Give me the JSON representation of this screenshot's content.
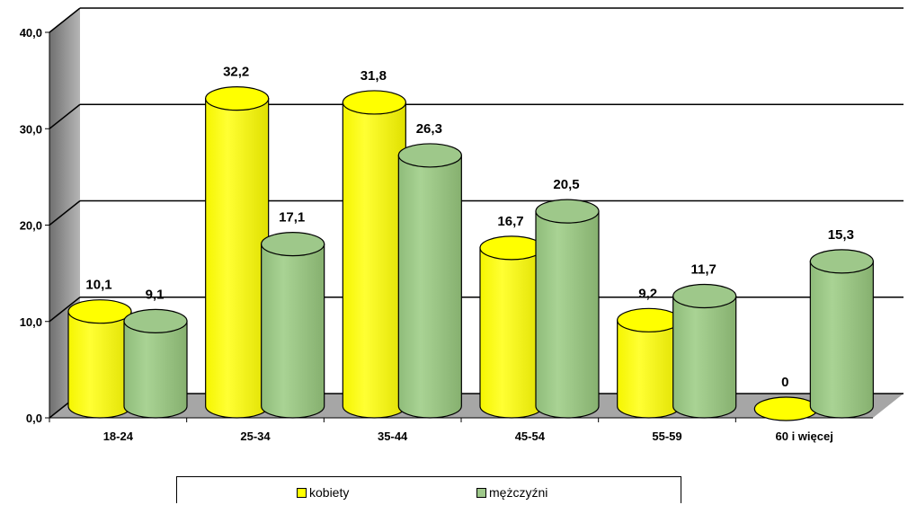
{
  "chart_data": {
    "type": "bar",
    "categories": [
      "18-24",
      "25-34",
      "35-44",
      "45-54",
      "55-59",
      "60 i więcej"
    ],
    "series": [
      {
        "name": "kobiety",
        "values": [
          10.1,
          32.2,
          31.8,
          16.7,
          9.2,
          0
        ],
        "labels": [
          "10,1",
          "32,2",
          "31,8",
          "16,7",
          "9,2",
          "0"
        ],
        "color": "#ffff00"
      },
      {
        "name": "mężczyźni",
        "values": [
          9.1,
          17.1,
          26.3,
          20.5,
          11.7,
          15.3
        ],
        "labels": [
          "9,1",
          "17,1",
          "26,3",
          "20,5",
          "11,7",
          "15,3"
        ],
        "color": "#9ec88a"
      }
    ],
    "y_ticks": [
      "0,0",
      "10,0",
      "20,0",
      "30,0",
      "40,0"
    ],
    "ylim": [
      0,
      40
    ],
    "grid": true,
    "legend_position": "bottom",
    "title": "",
    "xlabel": "",
    "ylabel": ""
  },
  "legend": {
    "kobiety": "kobiety",
    "mezczyzni": "mężczyźni"
  }
}
